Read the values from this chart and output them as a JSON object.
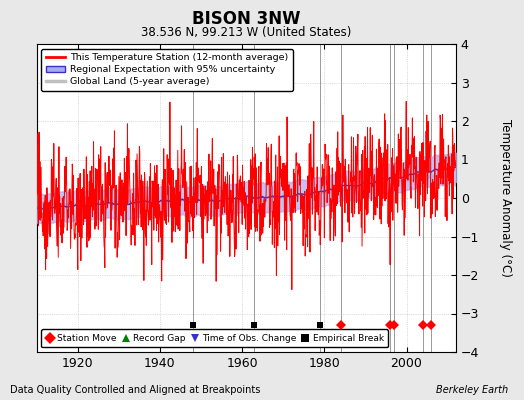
{
  "title": "BISON 3NW",
  "subtitle": "38.536 N, 99.213 W (United States)",
  "ylabel": "Temperature Anomaly (°C)",
  "xlabel_left": "Data Quality Controlled and Aligned at Breakpoints",
  "xlabel_right": "Berkeley Earth",
  "year_start": 1910,
  "year_end": 2012,
  "ylim": [
    -4,
    4
  ],
  "yticks": [
    -4,
    -3,
    -2,
    -1,
    0,
    1,
    2,
    3,
    4
  ],
  "xticks": [
    1920,
    1940,
    1960,
    1980,
    2000
  ],
  "background_color": "#e8e8e8",
  "plot_bg_color": "#ffffff",
  "station_color": "#ff0000",
  "regional_color": "#3333cc",
  "regional_fill_color": "#aaaaee",
  "global_color": "#c0c0c0",
  "seed": 42,
  "station_moves": [
    1984,
    1996,
    1997,
    2004,
    2006
  ],
  "empirical_breaks": [
    1948,
    1963,
    1979
  ],
  "obs_changes": [],
  "record_gaps": []
}
